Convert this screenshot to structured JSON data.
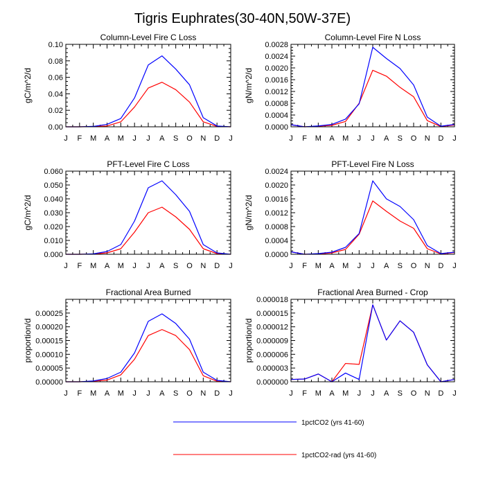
{
  "title": "Tigris Euphrates(30-40N,50W-37E)",
  "legend": {
    "placement": "bottom-center",
    "entries": [
      {
        "label": "1pctCO2 (yrs 41-60)",
        "color": "#0000ff"
      },
      {
        "label": "1pctCO2-rad (yrs 41-60)",
        "color": "#ff0000"
      }
    ]
  },
  "chart_data": [
    {
      "type": "line",
      "title": "Column-Level Fire C Loss",
      "ylabel": "gC/m^2/d",
      "x": [
        "J",
        "F",
        "M",
        "A",
        "M",
        "J",
        "J",
        "A",
        "S",
        "O",
        "N",
        "D",
        "J"
      ],
      "ylim": [
        0,
        0.1
      ],
      "yticks": [
        "0.00",
        "0.02",
        "0.04",
        "0.06",
        "0.08",
        "0.10"
      ],
      "series": [
        {
          "name": "1pctCO2 (yrs 41-60)",
          "color": "#0000ff",
          "values": [
            0.0,
            0.0,
            0.0005,
            0.003,
            0.01,
            0.035,
            0.075,
            0.086,
            0.07,
            0.051,
            0.011,
            0.001,
            0.0
          ]
        },
        {
          "name": "1pctCO2-rad (yrs 41-60)",
          "color": "#ff0000",
          "values": [
            0.0,
            0.0,
            0.0003,
            0.001,
            0.006,
            0.024,
            0.047,
            0.054,
            0.045,
            0.03,
            0.006,
            0.0005,
            0.0
          ]
        }
      ]
    },
    {
      "type": "line",
      "title": "Column-Level Fire N Loss",
      "ylabel": "gN/m^2/d",
      "x": [
        "J",
        "F",
        "M",
        "A",
        "M",
        "J",
        "J",
        "A",
        "S",
        "O",
        "N",
        "D",
        "J"
      ],
      "ylim": [
        0,
        0.0028
      ],
      "yticks": [
        "0.0000",
        "0.0004",
        "0.0008",
        "0.0012",
        "0.0016",
        "0.0020",
        "0.0024",
        "0.0028"
      ],
      "series": [
        {
          "name": "1pctCO2 (yrs 41-60)",
          "color": "#0000ff",
          "values": [
            7e-05,
            0.0,
            3e-05,
            8e-05,
            0.00026,
            0.00078,
            0.0027,
            0.00232,
            0.00198,
            0.00142,
            0.00033,
            2e-05,
            8e-05
          ]
        },
        {
          "name": "1pctCO2-rad (yrs 41-60)",
          "color": "#ff0000",
          "values": [
            7e-05,
            0.0,
            2e-05,
            5e-05,
            0.00018,
            0.0008,
            0.00192,
            0.00172,
            0.00134,
            0.00102,
            0.00021,
            1e-05,
            6e-05
          ]
        }
      ]
    },
    {
      "type": "line",
      "title": "PFT-Level Fire C Loss",
      "ylabel": "gC/m^2/d",
      "x": [
        "J",
        "F",
        "M",
        "A",
        "M",
        "J",
        "J",
        "A",
        "S",
        "O",
        "N",
        "D",
        "J"
      ],
      "ylim": [
        0,
        0.06
      ],
      "yticks": [
        "0.000",
        "0.010",
        "0.020",
        "0.030",
        "0.040",
        "0.050",
        "0.060"
      ],
      "series": [
        {
          "name": "1pctCO2 (yrs 41-60)",
          "color": "#0000ff",
          "values": [
            0.0,
            0.0,
            0.0003,
            0.002,
            0.007,
            0.024,
            0.048,
            0.053,
            0.043,
            0.031,
            0.007,
            0.001,
            0.0
          ]
        },
        {
          "name": "1pctCO2-rad (yrs 41-60)",
          "color": "#ff0000",
          "values": [
            0.0,
            0.0,
            0.0002,
            0.001,
            0.004,
            0.016,
            0.03,
            0.034,
            0.027,
            0.018,
            0.004,
            0.0005,
            0.0
          ]
        }
      ]
    },
    {
      "type": "line",
      "title": "PFT-Level Fire N Loss",
      "ylabel": "gN/m^2/d",
      "x": [
        "J",
        "F",
        "M",
        "A",
        "M",
        "J",
        "J",
        "A",
        "S",
        "O",
        "N",
        "D",
        "J"
      ],
      "ylim": [
        0,
        0.0024
      ],
      "yticks": [
        "0.0000",
        "0.0004",
        "0.0008",
        "0.0012",
        "0.0016",
        "0.0020",
        "0.0024"
      ],
      "series": [
        {
          "name": "1pctCO2 (yrs 41-60)",
          "color": "#0000ff",
          "values": [
            7e-05,
            0.0,
            2e-05,
            6e-05,
            0.0002,
            0.0006,
            0.00212,
            0.0016,
            0.00138,
            0.001,
            0.00025,
            2e-05,
            6e-05
          ]
        },
        {
          "name": "1pctCO2-rad (yrs 41-60)",
          "color": "#ff0000",
          "values": [
            7e-05,
            0.0,
            1e-05,
            4e-05,
            0.00014,
            0.00058,
            0.00154,
            0.00124,
            0.00096,
            0.00075,
            0.00016,
            1e-05,
            5e-05
          ]
        }
      ]
    },
    {
      "type": "line",
      "title": "Fractional Area Burned",
      "ylabel": "proportion/d",
      "x": [
        "J",
        "F",
        "M",
        "A",
        "M",
        "J",
        "J",
        "A",
        "S",
        "O",
        "N",
        "D",
        "J"
      ],
      "ylim": [
        0,
        0.0003
      ],
      "yticks": [
        "0.00000",
        "0.00005",
        "0.00010",
        "0.00015",
        "0.00020",
        "0.00025"
      ],
      "series": [
        {
          "name": "1pctCO2 (yrs 41-60)",
          "color": "#0000ff",
          "values": [
            0.0,
            0.0,
            3e-06,
            1.2e-05,
            3.5e-05,
            0.000105,
            0.00022,
            0.000247,
            0.000212,
            0.000155,
            3.5e-05,
            5e-06,
            0.0
          ]
        },
        {
          "name": "1pctCO2-rad (yrs 41-60)",
          "color": "#ff0000",
          "values": [
            0.0,
            0.0,
            2e-06,
            6e-06,
            2.5e-05,
            8.2e-05,
            0.000168,
            0.00019,
            0.000168,
            0.000117,
            2.2e-05,
            2e-06,
            0.0
          ]
        }
      ]
    },
    {
      "type": "line",
      "title": "Fractional Area Burned - Crop",
      "ylabel": "proportion/d",
      "x": [
        "J",
        "F",
        "M",
        "A",
        "M",
        "J",
        "J",
        "A",
        "S",
        "O",
        "N",
        "D",
        "J"
      ],
      "ylim": [
        0,
        1.8e-05
      ],
      "yticks": [
        "0.000000",
        "0.000003",
        "0.000006",
        "0.000009",
        "0.000012",
        "0.000015",
        "0.000018"
      ],
      "series": [
        {
          "name": "1pctCO2 (yrs 41-60)",
          "color": "#0000ff",
          "values": [
            5e-07,
            6e-07,
            1.7e-06,
            0.0,
            1.9e-06,
            5e-07,
            1.68e-05,
            9.1e-06,
            1.33e-05,
            1.08e-05,
            3.7e-06,
            0.0,
            5e-07
          ]
        },
        {
          "name": "1pctCO2-rad (yrs 41-60)",
          "color": "#ff0000",
          "values": [
            5e-07,
            6e-07,
            1.7e-06,
            0.0,
            4e-06,
            3.8e-06,
            1.68e-05,
            9.1e-06,
            1.33e-05,
            1.08e-05,
            3.7e-06,
            0.0,
            5e-07
          ]
        }
      ]
    }
  ]
}
